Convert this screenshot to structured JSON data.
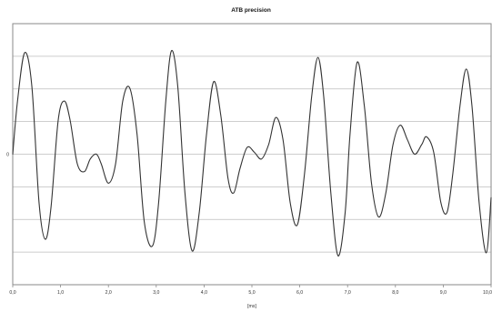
{
  "chart_data": {
    "type": "line",
    "title": "ATB precision",
    "xlabel": "[ms]",
    "ylabel": "",
    "x_ticks": [
      "0,0",
      "1,0",
      "2,0",
      "3,0",
      "4,0",
      "5,0",
      "6,0",
      "7,0",
      "8,0",
      "9,0",
      "10,0"
    ],
    "xlim": [
      0,
      10
    ],
    "y_ticks": [
      "0"
    ],
    "ylim": [
      -1.35,
      1.35
    ],
    "grid": true,
    "legend": "none",
    "colors": {
      "line": "#333333",
      "grid": "#bdbdbd",
      "frame": "#8a8a8a",
      "background": "#ffffff"
    },
    "series": [
      {
        "points": [
          [
            0.0,
            0.0
          ],
          [
            0.1,
            0.55
          ],
          [
            0.25,
            1.05
          ],
          [
            0.4,
            0.7
          ],
          [
            0.55,
            -0.5
          ],
          [
            0.68,
            -0.88
          ],
          [
            0.8,
            -0.55
          ],
          [
            0.95,
            0.35
          ],
          [
            1.08,
            0.55
          ],
          [
            1.2,
            0.35
          ],
          [
            1.35,
            -0.1
          ],
          [
            1.5,
            -0.18
          ],
          [
            1.62,
            -0.05
          ],
          [
            1.75,
            0.0
          ],
          [
            1.85,
            -0.1
          ],
          [
            2.0,
            -0.3
          ],
          [
            2.15,
            -0.1
          ],
          [
            2.3,
            0.55
          ],
          [
            2.45,
            0.68
          ],
          [
            2.6,
            0.2
          ],
          [
            2.75,
            -0.7
          ],
          [
            2.92,
            -0.95
          ],
          [
            3.05,
            -0.5
          ],
          [
            3.2,
            0.55
          ],
          [
            3.32,
            1.07
          ],
          [
            3.45,
            0.7
          ],
          [
            3.6,
            -0.4
          ],
          [
            3.75,
            -1.0
          ],
          [
            3.9,
            -0.6
          ],
          [
            4.05,
            0.2
          ],
          [
            4.2,
            0.75
          ],
          [
            4.35,
            0.4
          ],
          [
            4.5,
            -0.25
          ],
          [
            4.62,
            -0.4
          ],
          [
            4.75,
            -0.15
          ],
          [
            4.9,
            0.07
          ],
          [
            5.05,
            0.02
          ],
          [
            5.2,
            -0.05
          ],
          [
            5.35,
            0.1
          ],
          [
            5.5,
            0.38
          ],
          [
            5.65,
            0.15
          ],
          [
            5.8,
            -0.5
          ],
          [
            5.95,
            -0.73
          ],
          [
            6.1,
            -0.2
          ],
          [
            6.25,
            0.6
          ],
          [
            6.38,
            1.0
          ],
          [
            6.5,
            0.6
          ],
          [
            6.65,
            -0.4
          ],
          [
            6.8,
            -1.05
          ],
          [
            6.95,
            -0.6
          ],
          [
            7.05,
            0.2
          ],
          [
            7.2,
            0.95
          ],
          [
            7.35,
            0.5
          ],
          [
            7.5,
            -0.3
          ],
          [
            7.65,
            -0.65
          ],
          [
            7.8,
            -0.4
          ],
          [
            7.95,
            0.1
          ],
          [
            8.1,
            0.3
          ],
          [
            8.25,
            0.15
          ],
          [
            8.4,
            0.0
          ],
          [
            8.55,
            0.1
          ],
          [
            8.65,
            0.18
          ],
          [
            8.8,
            0.02
          ],
          [
            8.95,
            -0.5
          ],
          [
            9.08,
            -0.6
          ],
          [
            9.2,
            -0.2
          ],
          [
            9.35,
            0.5
          ],
          [
            9.48,
            0.88
          ],
          [
            9.6,
            0.5
          ],
          [
            9.75,
            -0.5
          ],
          [
            9.9,
            -1.02
          ],
          [
            10.0,
            -0.45
          ]
        ]
      }
    ]
  }
}
